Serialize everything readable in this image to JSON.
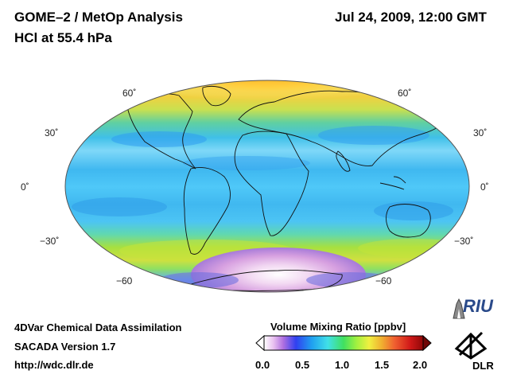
{
  "header": {
    "title": "GOME–2 / MetOp Analysis",
    "subtitle": "HCl at 55.4 hPa",
    "datetime": "Jul 24, 2009, 12:00 GMT"
  },
  "map": {
    "projection": "Mollweide",
    "lat_labels_left": [
      "60˚",
      "30˚",
      "0˚",
      "−30˚",
      "−60"
    ],
    "lat_labels_right": [
      "60˚",
      "30˚",
      "0˚",
      "−30˚",
      "−60"
    ]
  },
  "footer": {
    "line1": "4DVar Chemical Data Assimilation",
    "line2": "SACADA Version 1.7",
    "line3": "http://wdc.dlr.de"
  },
  "colorbar": {
    "title": "Volume Mixing Ratio [ppbv]",
    "ticks": [
      "0.0",
      "0.5",
      "1.0",
      "1.5",
      "2.0"
    ],
    "range": [
      0.0,
      2.0
    ]
  },
  "logos": {
    "riu": "RIU",
    "dlr": "DLR"
  },
  "colors": {
    "tropics": "#4fc8f0",
    "midlat": "#3fc0ff",
    "highlat_south": "#8fe050",
    "arctic": "#f0d040",
    "antarctic": "#e9b0e8"
  }
}
